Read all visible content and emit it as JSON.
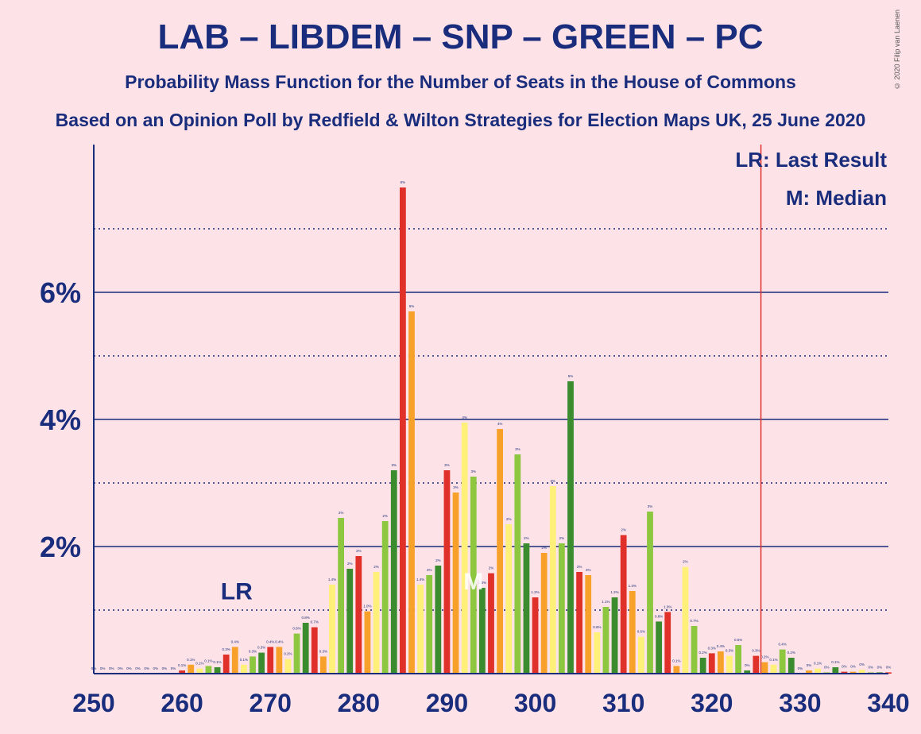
{
  "title": "LAB – LIBDEM – SNP – GREEN – PC",
  "subtitle": "Probability Mass Function for the Number of Seats in the House of Commons",
  "subtitle2": "Based on an Opinion Poll by Redfield & Wilton Strategies for Election Maps UK, 25 June 2020",
  "copyright": "© 2020 Filip van Laenen",
  "legend": {
    "lr": "LR: Last Result",
    "m": "M: Median"
  },
  "annotations": {
    "last_result_label": "LR",
    "median_label": "M"
  },
  "colors": {
    "background": "#fde3e7",
    "axis": "#1a2d7c",
    "majority_line": "#e0302a",
    "palette": [
      "#e0302a",
      "#f7a12b",
      "#fff07a",
      "#8dc63f",
      "#3a8c2e"
    ]
  },
  "chart_data": {
    "type": "bar",
    "xlabel": "",
    "ylabel": "",
    "xlim": [
      250,
      340
    ],
    "ylim": [
      0,
      8.3
    ],
    "y_unit": "%",
    "x_ticks": [
      "250",
      "260",
      "270",
      "280",
      "290",
      "300",
      "310",
      "320",
      "330",
      "340"
    ],
    "y_ticks": [
      {
        "value": 2,
        "label": "2%"
      },
      {
        "value": 4,
        "label": "4%"
      },
      {
        "value": 6,
        "label": "6%"
      }
    ],
    "minor_gridlines": [
      1,
      3,
      5,
      7
    ],
    "last_result_seat": 266,
    "median_seat": 293,
    "majority_seat": 326,
    "x": [
      250,
      251,
      252,
      253,
      254,
      255,
      256,
      257,
      258,
      259,
      260,
      261,
      262,
      263,
      264,
      265,
      266,
      267,
      268,
      269,
      270,
      271,
      272,
      273,
      274,
      275,
      276,
      277,
      278,
      279,
      280,
      281,
      282,
      283,
      284,
      285,
      286,
      287,
      288,
      289,
      290,
      291,
      292,
      293,
      294,
      295,
      296,
      297,
      298,
      299,
      300,
      301,
      302,
      303,
      304,
      305,
      306,
      307,
      308,
      309,
      310,
      311,
      312,
      313,
      314,
      315,
      316,
      317,
      318,
      319,
      320,
      321,
      322,
      323,
      324,
      325,
      326,
      327,
      328,
      329,
      330,
      331,
      332,
      333,
      334,
      335,
      336,
      337,
      338,
      339,
      340
    ],
    "values": [
      0,
      0,
      0,
      0,
      0,
      0,
      0,
      0,
      0,
      0,
      0.05,
      0.14,
      0.08,
      0.12,
      0.1,
      0.3,
      0.42,
      0.14,
      0.27,
      0.33,
      0.42,
      0.42,
      0.23,
      0.63,
      0.8,
      0.73,
      0.27,
      1.4,
      2.45,
      1.65,
      1.85,
      0.98,
      1.6,
      2.4,
      3.2,
      7.65,
      5.7,
      1.4,
      1.55,
      1.7,
      3.2,
      2.85,
      3.95,
      3.1,
      1.35,
      1.58,
      3.85,
      2.35,
      3.45,
      2.05,
      1.2,
      1.9,
      2.95,
      2.05,
      4.6,
      1.6,
      1.55,
      0.65,
      1.05,
      1.2,
      2.18,
      1.3,
      0.58,
      2.55,
      0.82,
      0.97,
      0.12,
      1.68,
      0.75,
      0.25,
      0.32,
      0.35,
      0.28,
      0.45,
      0.05,
      0.28,
      0.18,
      0.14,
      0.38,
      0.25,
      0,
      0.05,
      0.08,
      0.02,
      0.1,
      0.03,
      0.03,
      0.06,
      0.02,
      0.02,
      0.02
    ],
    "labels": [
      "0%",
      "0%",
      "0%",
      "0%",
      "0%",
      "0%",
      "0%",
      "0%",
      "0%",
      "0%",
      "0.1%",
      "0.1%",
      "0.1%",
      "0.1%",
      "0.1%",
      "0.3%",
      "0.4%",
      "0.1%",
      "0.3%",
      "0.3%",
      "0.4%",
      "0.4%",
      "0.2%",
      "0.6%",
      "0.8%",
      "0.7%",
      "0.3%",
      "1.4%",
      "2%",
      "2%",
      "2%",
      "1.0%",
      "2%",
      "2%",
      "3%",
      "8%",
      "6%",
      "1.4%",
      "2%",
      "2%",
      "3%",
      "3%",
      "4%",
      "3%",
      "1.3%",
      "2%",
      "4%",
      "2%",
      "3%",
      "2%",
      "1.2%",
      "2%",
      "3%",
      "2%",
      "5%",
      "2%",
      "2%",
      "0.6%",
      "1.1%",
      "1.2%",
      "2%",
      "1.3%",
      "0.6%",
      "3%",
      "0.8%",
      "1.0%",
      "0.1%",
      "2%",
      "0.7%",
      "0.2%",
      "0.3%",
      "0.4%",
      "0.3%",
      "0.5%",
      "0%",
      "0.3%",
      "0.2%",
      "0.1%",
      "0.4%",
      "0.2%",
      "0%",
      "0%",
      "0.1%",
      "0%",
      "0.1%",
      "0%",
      "0%",
      "0%",
      "0%",
      "0%",
      "0%"
    ]
  }
}
